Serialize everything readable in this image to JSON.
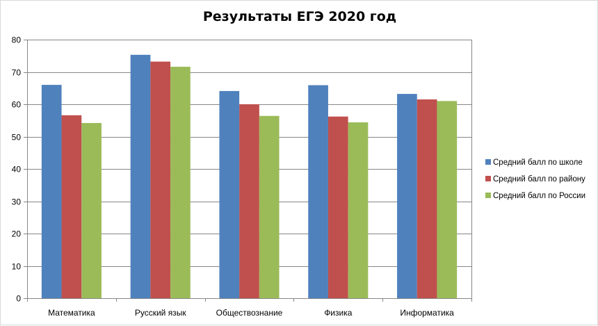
{
  "chart_data": {
    "type": "bar",
    "title": "Результаты ЕГЭ 2020 год",
    "categories": [
      "Математика",
      "Русский язык",
      "Обществознание",
      "Физика",
      "Информатика"
    ],
    "series": [
      {
        "name": "Средний балл по школе",
        "color": "#4f81bd",
        "values": [
          66,
          75.3,
          64.1,
          65.9,
          63.2
        ]
      },
      {
        "name": "Средний балл по району",
        "color": "#c0504d",
        "values": [
          56.6,
          73.2,
          60,
          56.2,
          61.5
        ]
      },
      {
        "name": "Средний балл по России",
        "color": "#9bbb59",
        "values": [
          54.2,
          71.6,
          56.4,
          54.4,
          61
        ]
      }
    ],
    "ylim": [
      0,
      80
    ],
    "yticks": [
      0,
      10,
      20,
      30,
      40,
      50,
      60,
      70,
      80
    ],
    "grid": true,
    "legend": "right"
  }
}
